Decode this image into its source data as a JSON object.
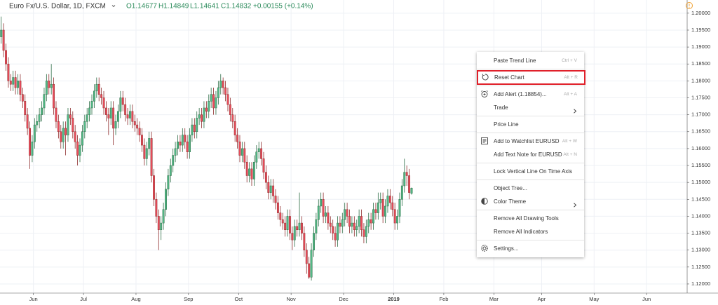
{
  "chart_data": {
    "type": "candlestick",
    "header": {
      "symbol": "Euro Fx/U.S. Dollar, 1D, FXCM",
      "open": "O1.14677",
      "high": "H1.14849",
      "low": "L1.14641",
      "close": "C1.14832",
      "change": "+0.00155 (+0.14%)"
    },
    "up_color": "#53b987",
    "down_color": "#eb4d5c",
    "up_border": "#2e6e47",
    "down_border": "#8e2c2c",
    "grid": true,
    "xlim": [
      0,
      288
    ],
    "xticks": [
      {
        "value": 14,
        "label": "Jun"
      },
      {
        "value": 35,
        "label": "Jul"
      },
      {
        "value": 57,
        "label": "Aug"
      },
      {
        "value": 79,
        "label": "Sep"
      },
      {
        "value": 100,
        "label": "Oct"
      },
      {
        "value": 122,
        "label": "Nov"
      },
      {
        "value": 144,
        "label": "Dec"
      },
      {
        "value": 165,
        "label": "2019",
        "bold": true
      },
      {
        "value": 186,
        "label": "Feb"
      },
      {
        "value": 207,
        "label": "Mar"
      },
      {
        "value": 227,
        "label": "Apr"
      },
      {
        "value": 249,
        "label": "May"
      },
      {
        "value": 271,
        "label": "Jun"
      }
    ],
    "ylim": [
      1.1173,
      1.2039
    ],
    "yticks": [
      {
        "value": 1.2,
        "label": "1.20000"
      },
      {
        "value": 1.195,
        "label": "1.19500"
      },
      {
        "value": 1.19,
        "label": "1.19000"
      },
      {
        "value": 1.185,
        "label": "1.18500"
      },
      {
        "value": 1.18,
        "label": "1.18000"
      },
      {
        "value": 1.175,
        "label": "1.17500"
      },
      {
        "value": 1.17,
        "label": "1.17000"
      },
      {
        "value": 1.165,
        "label": "1.16500"
      },
      {
        "value": 1.16,
        "label": "1.16000"
      },
      {
        "value": 1.155,
        "label": "1.15500"
      },
      {
        "value": 1.15,
        "label": "1.15000"
      },
      {
        "value": 1.145,
        "label": "1.14500"
      },
      {
        "value": 1.14,
        "label": "1.14000"
      },
      {
        "value": 1.135,
        "label": "1.13500"
      },
      {
        "value": 1.13,
        "label": "1.13000"
      },
      {
        "value": 1.125,
        "label": "1.12500"
      },
      {
        "value": 1.12,
        "label": "1.12000"
      }
    ],
    "candles": [
      [
        1.193,
        1.199,
        1.191,
        1.195
      ],
      [
        1.195,
        1.197,
        1.187,
        1.189
      ],
      [
        1.189,
        1.191,
        1.183,
        1.185
      ],
      [
        1.185,
        1.187,
        1.178,
        1.18
      ],
      [
        1.18,
        1.182,
        1.177,
        1.179
      ],
      [
        1.179,
        1.183,
        1.177,
        1.181
      ],
      [
        1.181,
        1.183,
        1.176,
        1.178
      ],
      [
        1.178,
        1.182,
        1.176,
        1.18
      ],
      [
        1.18,
        1.182,
        1.174,
        1.176
      ],
      [
        1.176,
        1.178,
        1.172,
        1.174
      ],
      [
        1.174,
        1.176,
        1.168,
        1.17
      ],
      [
        1.17,
        1.172,
        1.164,
        1.166
      ],
      [
        1.166,
        1.168,
        1.154,
        1.158
      ],
      [
        1.158,
        1.164,
        1.156,
        1.162
      ],
      [
        1.162,
        1.169,
        1.16,
        1.167
      ],
      [
        1.167,
        1.17,
        1.165,
        1.168
      ],
      [
        1.168,
        1.172,
        1.166,
        1.17
      ],
      [
        1.17,
        1.174,
        1.168,
        1.172
      ],
      [
        1.172,
        1.178,
        1.17,
        1.176
      ],
      [
        1.176,
        1.182,
        1.174,
        1.18
      ],
      [
        1.18,
        1.182,
        1.176,
        1.178
      ],
      [
        1.178,
        1.185,
        1.176,
        1.179
      ],
      [
        1.179,
        1.181,
        1.17,
        1.172
      ],
      [
        1.172,
        1.174,
        1.166,
        1.168
      ],
      [
        1.168,
        1.17,
        1.163,
        1.165
      ],
      [
        1.165,
        1.167,
        1.16,
        1.162
      ],
      [
        1.162,
        1.168,
        1.16,
        1.166
      ],
      [
        1.166,
        1.168,
        1.158,
        1.164
      ],
      [
        1.164,
        1.172,
        1.162,
        1.17
      ],
      [
        1.17,
        1.172,
        1.167,
        1.169
      ],
      [
        1.169,
        1.171,
        1.163,
        1.165
      ],
      [
        1.165,
        1.167,
        1.16,
        1.162
      ],
      [
        1.162,
        1.164,
        1.155,
        1.158
      ],
      [
        1.158,
        1.163,
        1.156,
        1.161
      ],
      [
        1.161,
        1.167,
        1.159,
        1.165
      ],
      [
        1.165,
        1.17,
        1.163,
        1.168
      ],
      [
        1.168,
        1.172,
        1.166,
        1.17
      ],
      [
        1.17,
        1.174,
        1.168,
        1.172
      ],
      [
        1.172,
        1.176,
        1.17,
        1.174
      ],
      [
        1.174,
        1.179,
        1.172,
        1.177
      ],
      [
        1.177,
        1.181,
        1.175,
        1.179
      ],
      [
        1.179,
        1.181,
        1.174,
        1.176
      ],
      [
        1.176,
        1.178,
        1.173,
        1.175
      ],
      [
        1.175,
        1.177,
        1.17,
        1.172
      ],
      [
        1.172,
        1.174,
        1.168,
        1.17
      ],
      [
        1.17,
        1.172,
        1.164,
        1.169
      ],
      [
        1.169,
        1.174,
        1.167,
        1.172
      ],
      [
        1.172,
        1.174,
        1.161,
        1.166
      ],
      [
        1.166,
        1.17,
        1.164,
        1.168
      ],
      [
        1.168,
        1.173,
        1.166,
        1.171
      ],
      [
        1.171,
        1.177,
        1.169,
        1.175
      ],
      [
        1.175,
        1.177,
        1.171,
        1.173
      ],
      [
        1.173,
        1.175,
        1.168,
        1.17
      ],
      [
        1.17,
        1.172,
        1.167,
        1.169
      ],
      [
        1.169,
        1.173,
        1.167,
        1.171
      ],
      [
        1.171,
        1.173,
        1.166,
        1.168
      ],
      [
        1.168,
        1.17,
        1.165,
        1.167
      ],
      [
        1.167,
        1.169,
        1.164,
        1.166
      ],
      [
        1.166,
        1.168,
        1.162,
        1.164
      ],
      [
        1.164,
        1.166,
        1.159,
        1.161
      ],
      [
        1.161,
        1.163,
        1.155,
        1.157
      ],
      [
        1.157,
        1.162,
        1.155,
        1.16
      ],
      [
        1.16,
        1.165,
        1.158,
        1.163
      ],
      [
        1.163,
        1.165,
        1.15,
        1.152
      ],
      [
        1.152,
        1.154,
        1.143,
        1.145
      ],
      [
        1.145,
        1.147,
        1.138,
        1.14
      ],
      [
        1.14,
        1.142,
        1.13,
        1.136
      ],
      [
        1.136,
        1.14,
        1.133,
        1.138
      ],
      [
        1.138,
        1.144,
        1.136,
        1.142
      ],
      [
        1.142,
        1.15,
        1.14,
        1.148
      ],
      [
        1.148,
        1.154,
        1.146,
        1.152
      ],
      [
        1.152,
        1.157,
        1.15,
        1.155
      ],
      [
        1.155,
        1.16,
        1.153,
        1.158
      ],
      [
        1.158,
        1.162,
        1.156,
        1.16
      ],
      [
        1.16,
        1.164,
        1.158,
        1.162
      ],
      [
        1.162,
        1.164,
        1.159,
        1.161
      ],
      [
        1.161,
        1.166,
        1.159,
        1.164
      ],
      [
        1.164,
        1.166,
        1.16,
        1.162
      ],
      [
        1.162,
        1.164,
        1.157,
        1.159
      ],
      [
        1.159,
        1.166,
        1.157,
        1.164
      ],
      [
        1.164,
        1.169,
        1.162,
        1.167
      ],
      [
        1.167,
        1.169,
        1.163,
        1.165
      ],
      [
        1.165,
        1.171,
        1.163,
        1.169
      ],
      [
        1.169,
        1.172,
        1.167,
        1.17
      ],
      [
        1.17,
        1.172,
        1.166,
        1.168
      ],
      [
        1.168,
        1.174,
        1.166,
        1.172
      ],
      [
        1.172,
        1.174,
        1.169,
        1.171
      ],
      [
        1.171,
        1.176,
        1.169,
        1.174
      ],
      [
        1.174,
        1.178,
        1.172,
        1.176
      ],
      [
        1.176,
        1.178,
        1.17,
        1.172
      ],
      [
        1.172,
        1.177,
        1.17,
        1.175
      ],
      [
        1.175,
        1.18,
        1.173,
        1.178
      ],
      [
        1.178,
        1.182,
        1.176,
        1.18
      ],
      [
        1.18,
        1.181,
        1.176,
        1.178
      ],
      [
        1.178,
        1.18,
        1.174,
        1.176
      ],
      [
        1.176,
        1.178,
        1.171,
        1.173
      ],
      [
        1.173,
        1.175,
        1.168,
        1.17
      ],
      [
        1.17,
        1.172,
        1.166,
        1.168
      ],
      [
        1.168,
        1.17,
        1.162,
        1.164
      ],
      [
        1.164,
        1.166,
        1.16,
        1.162
      ],
      [
        1.162,
        1.164,
        1.156,
        1.158
      ],
      [
        1.158,
        1.162,
        1.156,
        1.16
      ],
      [
        1.16,
        1.162,
        1.154,
        1.156
      ],
      [
        1.156,
        1.158,
        1.15,
        1.152
      ],
      [
        1.152,
        1.156,
        1.15,
        1.154
      ],
      [
        1.154,
        1.156,
        1.149,
        1.151
      ],
      [
        1.151,
        1.158,
        1.149,
        1.156
      ],
      [
        1.156,
        1.161,
        1.154,
        1.159
      ],
      [
        1.159,
        1.162,
        1.157,
        1.16
      ],
      [
        1.16,
        1.162,
        1.155,
        1.157
      ],
      [
        1.157,
        1.159,
        1.151,
        1.153
      ],
      [
        1.153,
        1.155,
        1.148,
        1.15
      ],
      [
        1.15,
        1.152,
        1.145,
        1.147
      ],
      [
        1.147,
        1.151,
        1.145,
        1.149
      ],
      [
        1.149,
        1.151,
        1.144,
        1.146
      ],
      [
        1.146,
        1.148,
        1.142,
        1.144
      ],
      [
        1.144,
        1.146,
        1.139,
        1.141
      ],
      [
        1.141,
        1.143,
        1.137,
        1.139
      ],
      [
        1.139,
        1.141,
        1.136,
        1.138
      ],
      [
        1.138,
        1.14,
        1.134,
        1.136
      ],
      [
        1.136,
        1.142,
        1.134,
        1.14
      ],
      [
        1.14,
        1.142,
        1.133,
        1.135
      ],
      [
        1.135,
        1.137,
        1.13,
        1.133
      ],
      [
        1.133,
        1.139,
        1.131,
        1.137
      ],
      [
        1.137,
        1.139,
        1.134,
        1.136
      ],
      [
        1.136,
        1.147,
        1.134,
        1.138
      ],
      [
        1.138,
        1.14,
        1.133,
        1.135
      ],
      [
        1.135,
        1.137,
        1.128,
        1.13
      ],
      [
        1.13,
        1.132,
        1.123,
        1.126
      ],
      [
        1.126,
        1.128,
        1.1215,
        1.122
      ],
      [
        1.122,
        1.132,
        1.121,
        1.13
      ],
      [
        1.13,
        1.137,
        1.128,
        1.135
      ],
      [
        1.135,
        1.141,
        1.133,
        1.139
      ],
      [
        1.139,
        1.145,
        1.137,
        1.143
      ],
      [
        1.143,
        1.147,
        1.141,
        1.145
      ],
      [
        1.145,
        1.147,
        1.138,
        1.14
      ],
      [
        1.14,
        1.143,
        1.138,
        1.141
      ],
      [
        1.141,
        1.143,
        1.136,
        1.138
      ],
      [
        1.138,
        1.14,
        1.135,
        1.137
      ],
      [
        1.137,
        1.139,
        1.133,
        1.135
      ],
      [
        1.135,
        1.137,
        1.131,
        1.133
      ],
      [
        1.133,
        1.14,
        1.131,
        1.138
      ],
      [
        1.138,
        1.14,
        1.135,
        1.137
      ],
      [
        1.137,
        1.141,
        1.135,
        1.139
      ],
      [
        1.139,
        1.144,
        1.137,
        1.142
      ],
      [
        1.142,
        1.144,
        1.138,
        1.14
      ],
      [
        1.14,
        1.142,
        1.135,
        1.137
      ],
      [
        1.137,
        1.14,
        1.135,
        1.138
      ],
      [
        1.138,
        1.14,
        1.134,
        1.136
      ],
      [
        1.136,
        1.139,
        1.134,
        1.137
      ],
      [
        1.137,
        1.142,
        1.135,
        1.14
      ],
      [
        1.14,
        1.142,
        1.134,
        1.136
      ],
      [
        1.136,
        1.138,
        1.132,
        1.134
      ],
      [
        1.134,
        1.139,
        1.132,
        1.137
      ],
      [
        1.137,
        1.141,
        1.135,
        1.139
      ],
      [
        1.139,
        1.141,
        1.136,
        1.138
      ],
      [
        1.138,
        1.144,
        1.136,
        1.142
      ],
      [
        1.142,
        1.144,
        1.139,
        1.141
      ],
      [
        1.141,
        1.147,
        1.139,
        1.144
      ],
      [
        1.144,
        1.147,
        1.142,
        1.145
      ],
      [
        1.145,
        1.147,
        1.138,
        1.14
      ],
      [
        1.14,
        1.145,
        1.138,
        1.143
      ],
      [
        1.143,
        1.148,
        1.141,
        1.146
      ],
      [
        1.146,
        1.148,
        1.142,
        1.144
      ],
      [
        1.144,
        1.146,
        1.14,
        1.142
      ],
      [
        1.142,
        1.144,
        1.136,
        1.138
      ],
      [
        1.138,
        1.142,
        1.136,
        1.14
      ],
      [
        1.14,
        1.147,
        1.138,
        1.145
      ],
      [
        1.145,
        1.151,
        1.143,
        1.149
      ],
      [
        1.149,
        1.157,
        1.147,
        1.153
      ],
      [
        1.153,
        1.155,
        1.149,
        1.152
      ],
      [
        1.152,
        1.154,
        1.145,
        1.147
      ],
      [
        1.14677,
        1.14849,
        1.14641,
        1.14832
      ]
    ]
  },
  "context_menu": {
    "groups": [
      [
        {
          "label": "Paste Trend Line",
          "shortcut": "Ctrl + V"
        }
      ],
      [
        {
          "label": "Reset Chart",
          "shortcut": "Alt + R",
          "icon": "reset",
          "highlighted": true
        }
      ],
      [
        {
          "label": "Add Alert (1.18854)...",
          "shortcut": "Alt + A",
          "icon": "alert"
        },
        {
          "label": "Trade",
          "submenu": true
        }
      ],
      [
        {
          "label": "Price Line"
        }
      ],
      [
        {
          "label": "Add to Watchlist EURUSD",
          "shortcut": "Alt + W",
          "icon": "watchlist"
        },
        {
          "label": "Add Text Note for EURUSD",
          "shortcut": "Alt + N"
        }
      ],
      [
        {
          "label": "Lock Vertical Line On Time Axis"
        }
      ],
      [
        {
          "label": "Object Tree..."
        },
        {
          "label": "Color Theme",
          "icon": "theme",
          "submenu": true
        }
      ],
      [
        {
          "label": "Remove All Drawing Tools"
        },
        {
          "label": "Remove All Indicators"
        }
      ],
      [
        {
          "label": "Settings...",
          "icon": "settings"
        }
      ]
    ]
  }
}
